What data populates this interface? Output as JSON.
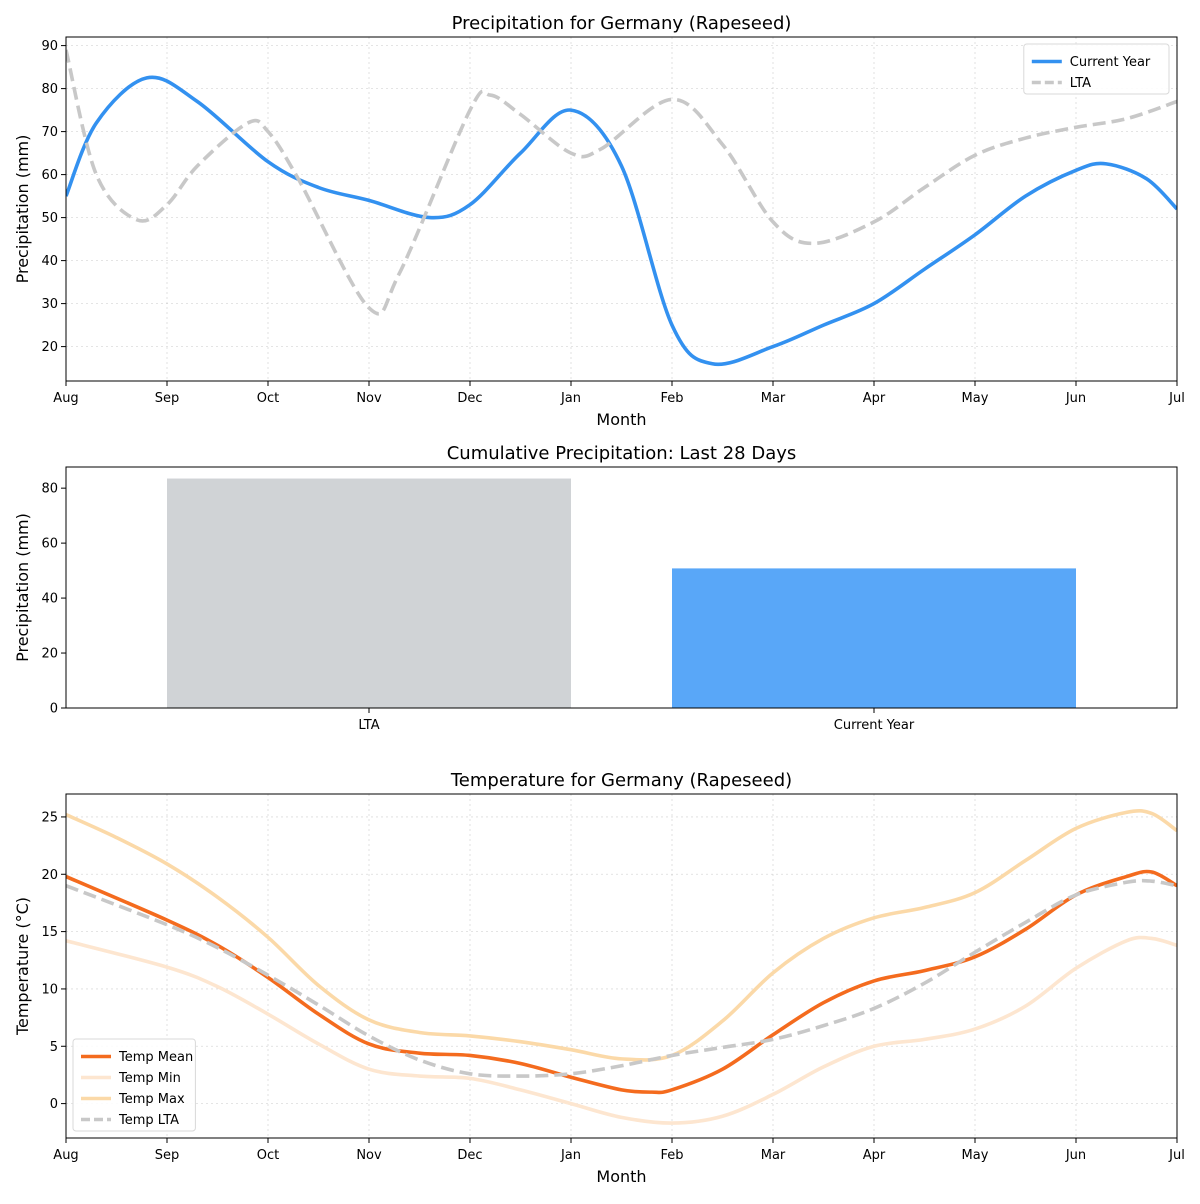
{
  "chart_data": [
    {
      "type": "line",
      "title": "Precipitation for Germany (Rapeseed)",
      "xlabel": "Month",
      "ylabel": "Precipitation (mm)",
      "categories": [
        "Aug",
        "Sep",
        "Oct",
        "Nov",
        "Dec",
        "Jan",
        "Feb",
        "Mar",
        "Apr",
        "May",
        "Jun",
        "Jul"
      ],
      "ylim": [
        12,
        92
      ],
      "yticks": [
        20,
        30,
        40,
        50,
        60,
        70,
        80,
        90
      ],
      "grid": true,
      "legend": "top-right",
      "series": [
        {
          "name": "Current Year",
          "color": "#3391f0",
          "style": "solid",
          "x": [
            0,
            0.3,
            0.8,
            1.3,
            2.0,
            2.5,
            3.0,
            3.6,
            4.0,
            4.5,
            5.0,
            5.5,
            6.0,
            6.4,
            7.0,
            7.5,
            8.0,
            8.5,
            9.0,
            9.5,
            10.0,
            10.3,
            10.7,
            11.0
          ],
          "values": [
            55,
            72,
            82.5,
            77,
            63,
            57,
            54,
            50,
            53,
            65,
            75,
            62,
            25,
            16,
            20,
            25,
            30,
            38,
            46,
            55,
            61,
            62.5,
            59,
            52
          ]
        },
        {
          "name": "LTA",
          "color": "#c8c8c8",
          "style": "dashed",
          "x": [
            0,
            0.3,
            0.7,
            1.0,
            1.3,
            1.8,
            2.0,
            2.3,
            3.0,
            3.3,
            4.0,
            4.2,
            4.5,
            5.0,
            5.3,
            6.0,
            6.5,
            7.0,
            7.4,
            8.0,
            8.5,
            9.0,
            9.5,
            10.0,
            10.5,
            11.0
          ],
          "values": [
            89,
            60,
            49.5,
            53,
            62,
            72,
            70,
            59,
            29,
            37,
            75,
            78.5,
            74,
            65,
            66,
            77.5,
            67,
            49,
            44,
            49,
            57,
            64.5,
            68.5,
            71,
            73,
            77
          ]
        }
      ]
    },
    {
      "type": "bar",
      "title": "Cumulative Precipitation: Last 28 Days",
      "xlabel": "",
      "ylabel": "Precipitation (mm)",
      "categories": [
        "LTA",
        "Current Year"
      ],
      "values": [
        83.5,
        50.8
      ],
      "colors": [
        "#d0d3d6",
        "#59a7f8"
      ],
      "ylim": [
        0,
        87.7
      ],
      "yticks": [
        0,
        20,
        40,
        60,
        80
      ],
      "grid": false
    },
    {
      "type": "line",
      "title": "Temperature for Germany (Rapeseed)",
      "xlabel": "Month",
      "ylabel": "Temperature (°C)",
      "categories": [
        "Aug",
        "Sep",
        "Oct",
        "Nov",
        "Dec",
        "Jan",
        "Feb",
        "Mar",
        "Apr",
        "May",
        "Jun",
        "Jul"
      ],
      "ylim": [
        -3,
        27
      ],
      "yticks": [
        0,
        5,
        10,
        15,
        20,
        25
      ],
      "grid": true,
      "legend": "bottom-left",
      "series": [
        {
          "name": "Temp Mean",
          "color": "#f46b1e",
          "style": "solid",
          "x": [
            0,
            1,
            1.5,
            2,
            2.5,
            3,
            3.5,
            4,
            4.5,
            5,
            5.5,
            5.8,
            6,
            6.5,
            7,
            7.5,
            8,
            8.5,
            9,
            9.5,
            10,
            10.5,
            10.75,
            11
          ],
          "values": [
            19.8,
            16,
            13.8,
            11,
            7.8,
            5.2,
            4.4,
            4.2,
            3.5,
            2.3,
            1.2,
            1,
            1.2,
            3,
            6,
            8.8,
            10.7,
            11.6,
            12.8,
            15.2,
            18.2,
            19.8,
            20.2,
            19
          ]
        },
        {
          "name": "Temp Min",
          "color": "#fde6d0",
          "style": "solid",
          "x": [
            0,
            1,
            1.5,
            2,
            2.5,
            3,
            3.5,
            4,
            4.5,
            5,
            5.5,
            6,
            6.5,
            7,
            7.5,
            8,
            8.5,
            9,
            9.5,
            10,
            10.5,
            10.75,
            11
          ],
          "values": [
            14.2,
            11.9,
            10.2,
            7.8,
            5.2,
            3,
            2.4,
            2.2,
            1.2,
            0,
            -1.2,
            -1.7,
            -1.1,
            0.8,
            3.2,
            5,
            5.6,
            6.5,
            8.5,
            11.8,
            14.2,
            14.4,
            13.8
          ]
        },
        {
          "name": "Temp Max",
          "color": "#fbd9a8",
          "style": "solid",
          "x": [
            0,
            0.5,
            1,
            1.5,
            2,
            2.5,
            3,
            3.5,
            4,
            4.5,
            5,
            5.5,
            6,
            6.5,
            7,
            7.5,
            8,
            8.5,
            9,
            9.5,
            10,
            10.5,
            10.75,
            11
          ],
          "values": [
            25.2,
            23.2,
            20.9,
            18,
            14.5,
            10.3,
            7.3,
            6.2,
            5.9,
            5.4,
            4.7,
            3.9,
            4.2,
            7.2,
            11.4,
            14.4,
            16.2,
            17.1,
            18.4,
            21.2,
            24,
            25.4,
            25.3,
            23.8
          ]
        },
        {
          "name": "Temp LTA",
          "color": "#c8c8c8",
          "style": "dashed",
          "x": [
            0,
            1,
            1.5,
            2,
            2.5,
            3,
            3.5,
            4,
            4.5,
            5,
            5.5,
            6,
            6.5,
            7,
            7.5,
            8,
            8.5,
            9,
            9.5,
            10,
            10.5,
            10.75,
            11
          ],
          "values": [
            19,
            15.6,
            13.6,
            11.2,
            8.6,
            5.9,
            3.8,
            2.6,
            2.4,
            2.6,
            3.3,
            4.2,
            4.9,
            5.6,
            6.8,
            8.3,
            10.5,
            13.2,
            15.8,
            18.2,
            19.3,
            19.4,
            19
          ]
        }
      ]
    }
  ]
}
